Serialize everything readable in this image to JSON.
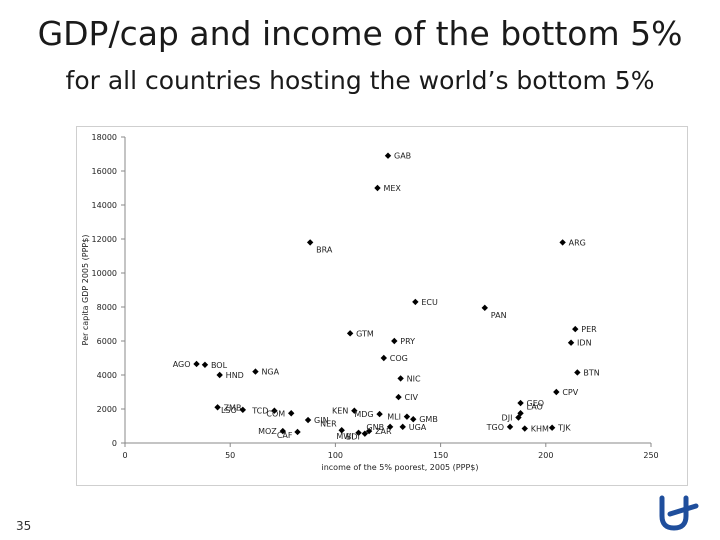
{
  "slide": {
    "title": "GDP/cap and income of the bottom 5%",
    "subtitle": "for all countries hosting the world’s bottom 5%",
    "page_number": "35",
    "accent_color": "#1f4e9c"
  },
  "chart_data": {
    "type": "scatter",
    "xlabel": "income of the 5% poorest, 2005 (PPP$)",
    "ylabel": "Per capita GDP 2005 (PPP$)",
    "xlim": [
      0,
      250
    ],
    "ylim": [
      0,
      18000
    ],
    "x_ticks": [
      0,
      50,
      100,
      150,
      200,
      250
    ],
    "y_ticks": [
      0,
      2000,
      4000,
      6000,
      8000,
      10000,
      12000,
      14000,
      16000,
      18000
    ],
    "grid": false,
    "legend": "none",
    "marker_color": "#000000",
    "points": [
      {
        "label": "GAB",
        "x": 125,
        "y": 16900,
        "label_side": "right"
      },
      {
        "label": "MEX",
        "x": 120,
        "y": 15000,
        "label_side": "right"
      },
      {
        "label": "BRA",
        "x": 88,
        "y": 11800,
        "label_side": "right-below"
      },
      {
        "label": "ARG",
        "x": 208,
        "y": 11800,
        "label_side": "right"
      },
      {
        "label": "ECU",
        "x": 138,
        "y": 8300,
        "label_side": "right"
      },
      {
        "label": "PAN",
        "x": 171,
        "y": 7950,
        "label_side": "right-below"
      },
      {
        "label": "GTM",
        "x": 107,
        "y": 6450,
        "label_side": "right"
      },
      {
        "label": "PRY",
        "x": 128,
        "y": 6000,
        "label_side": "right"
      },
      {
        "label": "PER",
        "x": 214,
        "y": 6700,
        "label_side": "right"
      },
      {
        "label": "IDN",
        "x": 212,
        "y": 5900,
        "label_side": "right"
      },
      {
        "label": "AGO",
        "x": 34,
        "y": 4650,
        "label_side": "left"
      },
      {
        "label": "BOL",
        "x": 38,
        "y": 4600,
        "label_side": "right"
      },
      {
        "label": "COG",
        "x": 123,
        "y": 5000,
        "label_side": "right"
      },
      {
        "label": "HND",
        "x": 45,
        "y": 4000,
        "label_side": "right"
      },
      {
        "label": "NGA",
        "x": 62,
        "y": 4200,
        "label_side": "right"
      },
      {
        "label": "BTN",
        "x": 215,
        "y": 4150,
        "label_side": "right"
      },
      {
        "label": "NIC",
        "x": 131,
        "y": 3800,
        "label_side": "right"
      },
      {
        "label": "CIV",
        "x": 130,
        "y": 2700,
        "label_side": "right"
      },
      {
        "label": "GEO",
        "x": 188,
        "y": 2350,
        "label_side": "right"
      },
      {
        "label": "CPV",
        "x": 205,
        "y": 3000,
        "label_side": "right"
      },
      {
        "label": "ZMB",
        "x": 44,
        "y": 2100,
        "label_side": "right"
      },
      {
        "label": "LSO",
        "x": 56,
        "y": 1950,
        "label_side": "left"
      },
      {
        "label": "TCD",
        "x": 71,
        "y": 1900,
        "label_side": "left"
      },
      {
        "label": "COM",
        "x": 79,
        "y": 1750,
        "label_side": "left"
      },
      {
        "label": "KEN",
        "x": 109,
        "y": 1900,
        "label_side": "left"
      },
      {
        "label": "GIN",
        "x": 87,
        "y": 1350,
        "label_side": "right"
      },
      {
        "label": "MDG",
        "x": 121,
        "y": 1700,
        "label_side": "left"
      },
      {
        "label": "MLI",
        "x": 134,
        "y": 1550,
        "label_side": "left"
      },
      {
        "label": "GMB",
        "x": 137,
        "y": 1400,
        "label_side": "right"
      },
      {
        "label": "LAO",
        "x": 188,
        "y": 1750,
        "label_side": "right-above"
      },
      {
        "label": "DJI",
        "x": 187,
        "y": 1500,
        "label_side": "left"
      },
      {
        "label": "MOZ",
        "x": 75,
        "y": 700,
        "label_side": "left"
      },
      {
        "label": "CAF",
        "x": 82,
        "y": 650,
        "label_side": "left-below"
      },
      {
        "label": "NER",
        "x": 103,
        "y": 750,
        "label_side": "left-above"
      },
      {
        "label": "MWI",
        "x": 111,
        "y": 600,
        "label_side": "left-below"
      },
      {
        "label": "BDI",
        "x": 114,
        "y": 550,
        "label_side": "left-below"
      },
      {
        "label": "ZAR",
        "x": 116,
        "y": 700,
        "label_side": "right"
      },
      {
        "label": "GNB",
        "x": 126,
        "y": 950,
        "label_side": "left"
      },
      {
        "label": "UGA",
        "x": 132,
        "y": 950,
        "label_side": "right"
      },
      {
        "label": "TGO",
        "x": 183,
        "y": 950,
        "label_side": "left"
      },
      {
        "label": "KHM",
        "x": 190,
        "y": 850,
        "label_side": "right"
      },
      {
        "label": "TJK",
        "x": 203,
        "y": 900,
        "label_side": "right"
      }
    ]
  }
}
